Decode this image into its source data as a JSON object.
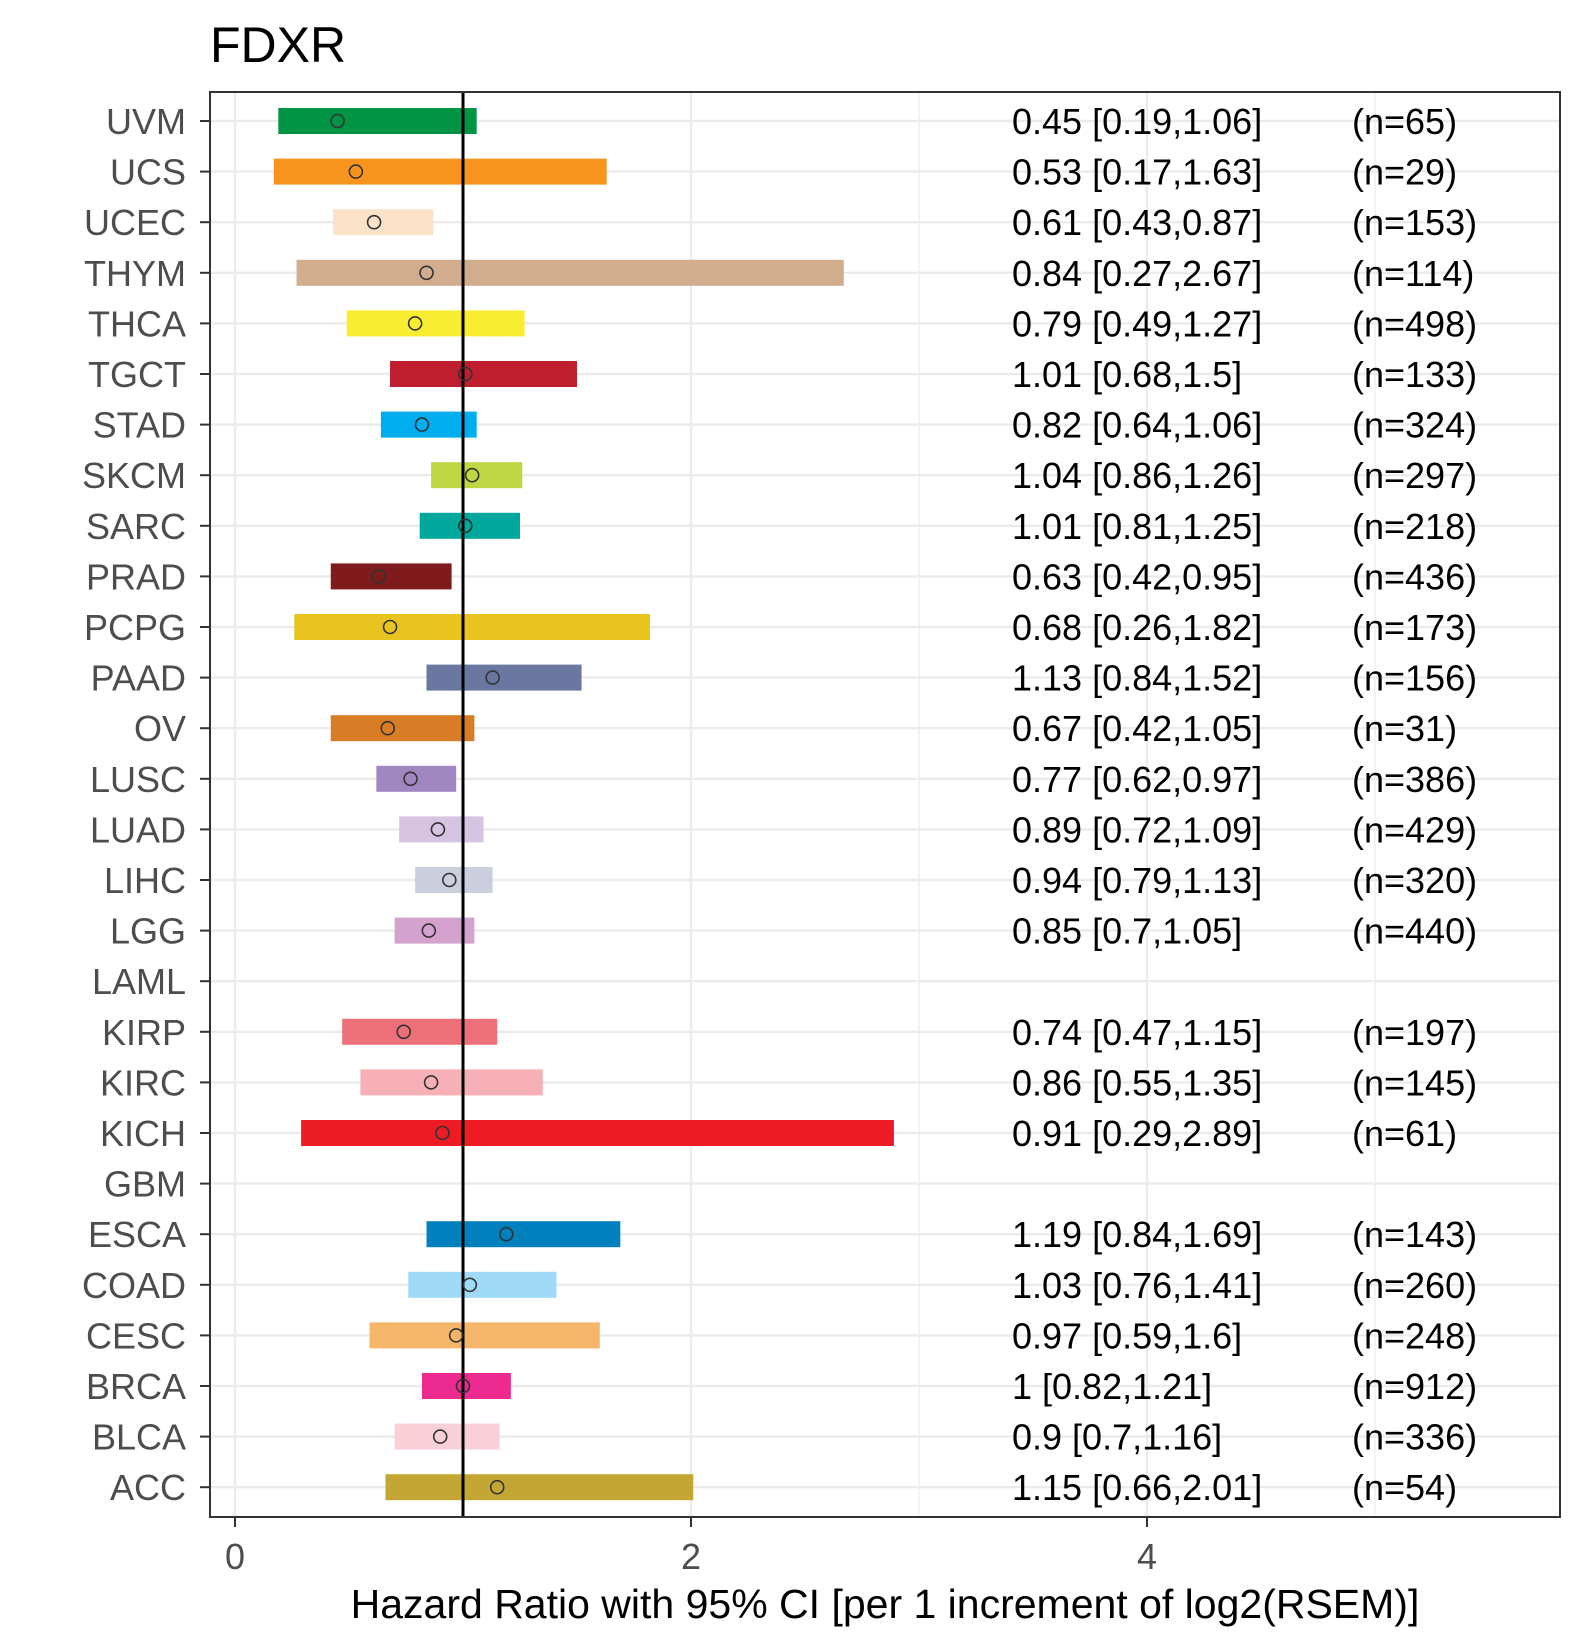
{
  "chart_data": {
    "type": "forest",
    "title": "FDXR",
    "xlabel": "Hazard Ratio with 95% CI [per 1 increment of log2(RSEM)]",
    "ylabel": "",
    "xlim": [
      -0.1,
      5.75
    ],
    "xticks": [
      0,
      2,
      4
    ],
    "tick_labels": [
      "0",
      "2",
      "4"
    ],
    "reference_line": 1,
    "grid": true,
    "rows": [
      {
        "label": "UVM",
        "hr": 0.45,
        "lo": 0.19,
        "hi": 1.06,
        "text": "0.45 [0.19,1.06]",
        "n": "(n=65)",
        "color": "#009444"
      },
      {
        "label": "UCS",
        "hr": 0.53,
        "lo": 0.17,
        "hi": 1.63,
        "text": "0.53 [0.17,1.63]",
        "n": "(n=29)",
        "color": "#f7941d"
      },
      {
        "label": "UCEC",
        "hr": 0.61,
        "lo": 0.43,
        "hi": 0.87,
        "text": "0.61 [0.43,0.87]",
        "n": "(n=153)",
        "color": "#fbe2c8"
      },
      {
        "label": "THYM",
        "hr": 0.84,
        "lo": 0.27,
        "hi": 2.67,
        "text": "0.84 [0.27,2.67]",
        "n": "(n=114)",
        "color": "#d1ac8d"
      },
      {
        "label": "THCA",
        "hr": 0.79,
        "lo": 0.49,
        "hi": 1.27,
        "text": "0.79 [0.49,1.27]",
        "n": "(n=498)",
        "color": "#f9ed32"
      },
      {
        "label": "TGCT",
        "hr": 1.01,
        "lo": 0.68,
        "hi": 1.5,
        "text": "1.01 [0.68,1.5]",
        "n": "(n=133)",
        "color": "#be1e2d"
      },
      {
        "label": "STAD",
        "hr": 0.82,
        "lo": 0.64,
        "hi": 1.06,
        "text": "0.82 [0.64,1.06]",
        "n": "(n=324)",
        "color": "#00aeef"
      },
      {
        "label": "SKCM",
        "hr": 1.04,
        "lo": 0.86,
        "hi": 1.26,
        "text": "1.04 [0.86,1.26]",
        "n": "(n=297)",
        "color": "#bfd742"
      },
      {
        "label": "SARC",
        "hr": 1.01,
        "lo": 0.81,
        "hi": 1.25,
        "text": "1.01 [0.81,1.25]",
        "n": "(n=218)",
        "color": "#00a79d"
      },
      {
        "label": "PRAD",
        "hr": 0.63,
        "lo": 0.42,
        "hi": 0.95,
        "text": "0.63 [0.42,0.95]",
        "n": "(n=436)",
        "color": "#7f1a1d"
      },
      {
        "label": "PCPG",
        "hr": 0.68,
        "lo": 0.26,
        "hi": 1.82,
        "text": "0.68 [0.26,1.82]",
        "n": "(n=173)",
        "color": "#e9c41f"
      },
      {
        "label": "PAAD",
        "hr": 1.13,
        "lo": 0.84,
        "hi": 1.52,
        "text": "1.13 [0.84,1.52]",
        "n": "(n=156)",
        "color": "#6a77a0"
      },
      {
        "label": "OV",
        "hr": 0.67,
        "lo": 0.42,
        "hi": 1.05,
        "text": "0.67 [0.42,1.05]",
        "n": "(n=31)",
        "color": "#d97c26"
      },
      {
        "label": "LUSC",
        "hr": 0.77,
        "lo": 0.62,
        "hi": 0.97,
        "text": "0.77 [0.62,0.97]",
        "n": "(n=386)",
        "color": "#a187c2"
      },
      {
        "label": "LUAD",
        "hr": 0.89,
        "lo": 0.72,
        "hi": 1.09,
        "text": "0.89 [0.72,1.09]",
        "n": "(n=429)",
        "color": "#d6c4e2"
      },
      {
        "label": "LIHC",
        "hr": 0.94,
        "lo": 0.79,
        "hi": 1.13,
        "text": "0.94 [0.79,1.13]",
        "n": "(n=320)",
        "color": "#cbcedd"
      },
      {
        "label": "LGG",
        "hr": 0.85,
        "lo": 0.7,
        "hi": 1.05,
        "text": "0.85 [0.7,1.05]",
        "n": "(n=440)",
        "color": "#d4a2ce"
      },
      {
        "label": "LAML",
        "hr": null,
        "lo": null,
        "hi": null,
        "text": "",
        "n": "",
        "color": "#cccccc"
      },
      {
        "label": "KIRP",
        "hr": 0.74,
        "lo": 0.47,
        "hi": 1.15,
        "text": "0.74 [0.47,1.15]",
        "n": "(n=197)",
        "color": "#ed6f78"
      },
      {
        "label": "KIRC",
        "hr": 0.86,
        "lo": 0.55,
        "hi": 1.35,
        "text": "0.86 [0.55,1.35]",
        "n": "(n=145)",
        "color": "#f6b0b6"
      },
      {
        "label": "KICH",
        "hr": 0.91,
        "lo": 0.29,
        "hi": 2.89,
        "text": "0.91 [0.29,2.89]",
        "n": "(n=61)",
        "color": "#ed1c24"
      },
      {
        "label": "GBM",
        "hr": null,
        "lo": null,
        "hi": null,
        "text": "",
        "n": "",
        "color": "#cccccc"
      },
      {
        "label": "ESCA",
        "hr": 1.19,
        "lo": 0.84,
        "hi": 1.69,
        "text": "1.19 [0.84,1.69]",
        "n": "(n=143)",
        "color": "#0080bc"
      },
      {
        "label": "COAD",
        "hr": 1.03,
        "lo": 0.76,
        "hi": 1.41,
        "text": "1.03 [0.76,1.41]",
        "n": "(n=260)",
        "color": "#9fdaf8"
      },
      {
        "label": "CESC",
        "hr": 0.97,
        "lo": 0.59,
        "hi": 1.6,
        "text": "0.97 [0.59,1.6]",
        "n": "(n=248)",
        "color": "#f5b66a"
      },
      {
        "label": "BRCA",
        "hr": 1,
        "lo": 0.82,
        "hi": 1.21,
        "text": "1 [0.82,1.21]",
        "n": "(n=912)",
        "color": "#ec2a90"
      },
      {
        "label": "BLCA",
        "hr": 0.9,
        "lo": 0.7,
        "hi": 1.16,
        "text": "0.9 [0.7,1.16]",
        "n": "(n=336)",
        "color": "#f9d0d8"
      },
      {
        "label": "ACC",
        "hr": 1.15,
        "lo": 0.66,
        "hi": 2.01,
        "text": "1.15 [0.66,2.01]",
        "n": "(n=54)",
        "color": "#c4a634"
      }
    ]
  }
}
